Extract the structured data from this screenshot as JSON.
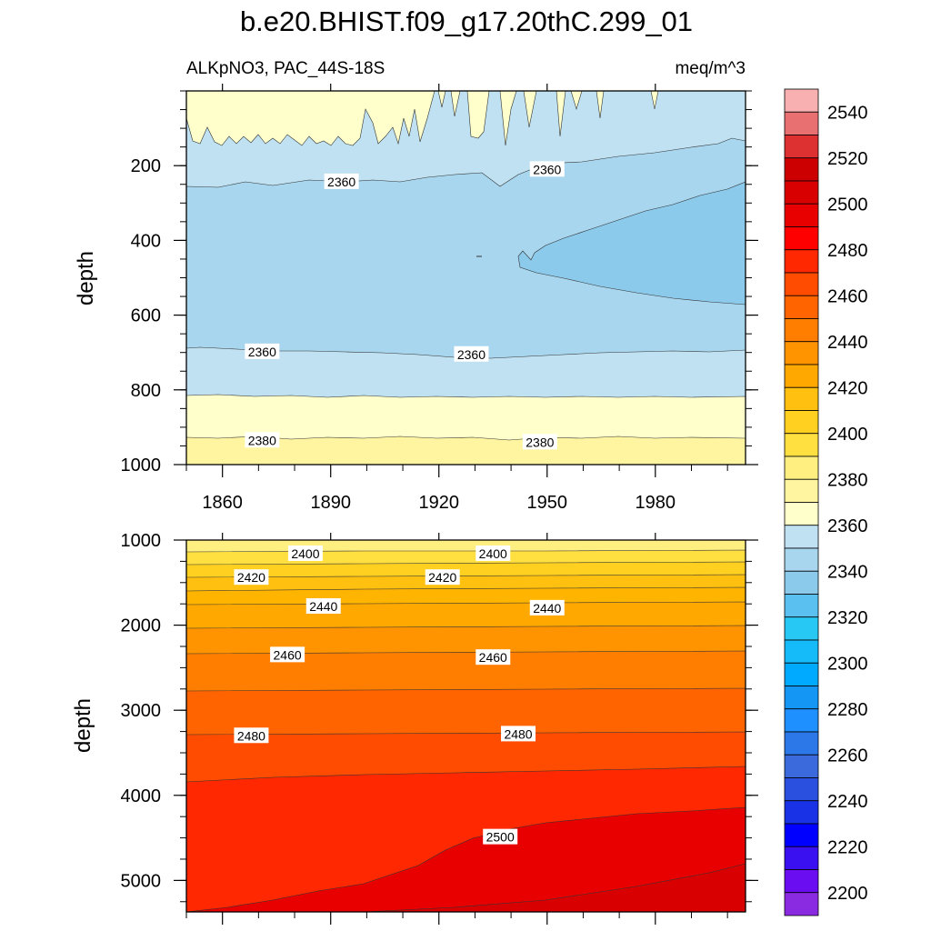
{
  "chart_data": {
    "type": "contour",
    "title": "b.e20.BHIST.f09_g17.20thC.299_01",
    "left_subtitle": "ALKpNO3, PAC_44S-18S",
    "right_subtitle": "meq/m^3",
    "colorbar": {
      "tick_labels": [
        "2200",
        "2220",
        "2240",
        "2260",
        "2280",
        "2300",
        "2320",
        "2340",
        "2360",
        "2380",
        "2400",
        "2420",
        "2440",
        "2460",
        "2480",
        "2500",
        "2520",
        "2540"
      ],
      "colors": [
        "#8a2be2",
        "#6a0df0",
        "#3a0ff0",
        "#0000ff",
        "#1a32e6",
        "#2a50e0",
        "#3a6adc",
        "#2c78e8",
        "#1e90ff",
        "#1496f5",
        "#00aaff",
        "#14bbf8",
        "#28c8f5",
        "#5ac0f0",
        "#8ccaec",
        "#a8d6ee",
        "#bfe1f2",
        "#ffffcc",
        "#fff5a0",
        "#ffef80",
        "#ffe040",
        "#ffd020",
        "#ffc010",
        "#ffa800",
        "#ff9400",
        "#ff7e00",
        "#ff6400",
        "#ff4c00",
        "#ff2800",
        "#ff0000",
        "#e80000",
        "#d80000",
        "#cc0000",
        "#dd3030",
        "#e87070",
        "#f8b0b0"
      ]
    },
    "panels": [
      {
        "ylabel": "depth",
        "xlabel": "",
        "xlim": [
          1850,
          2005
        ],
        "ylim": [
          1000,
          0
        ],
        "x_ticks": [
          "1860",
          "1890",
          "1920",
          "1950",
          "1980"
        ],
        "y_ticks": [
          "200",
          "400",
          "600",
          "800",
          "1000"
        ],
        "contour_labels": [
          {
            "text": "2360",
            "x": 1893,
            "y": 243
          },
          {
            "text": "2360",
            "x": 1950,
            "y": 210
          },
          {
            "text": "2360",
            "x": 1871,
            "y": 698
          },
          {
            "text": "2360",
            "x": 1929,
            "y": 705
          },
          {
            "text": "2380",
            "x": 1871,
            "y": 935
          },
          {
            "text": "2380",
            "x": 1948,
            "y": 940
          }
        ]
      },
      {
        "ylabel": "depth",
        "xlabel": "",
        "xlim": [
          1850,
          2005
        ],
        "ylim": [
          5370,
          1000
        ],
        "x_ticks": [],
        "y_ticks": [
          "1000",
          "2000",
          "3000",
          "4000",
          "5000"
        ],
        "contour_labels": [
          {
            "text": "2400",
            "x": 1883,
            "y": 1160
          },
          {
            "text": "2400",
            "x": 1935,
            "y": 1160
          },
          {
            "text": "2420",
            "x": 1868,
            "y": 1440
          },
          {
            "text": "2420",
            "x": 1921,
            "y": 1440
          },
          {
            "text": "2440",
            "x": 1888,
            "y": 1780
          },
          {
            "text": "2440",
            "x": 1950,
            "y": 1800
          },
          {
            "text": "2460",
            "x": 1878,
            "y": 2350
          },
          {
            "text": "2460",
            "x": 1935,
            "y": 2380
          },
          {
            "text": "2480",
            "x": 1868,
            "y": 3300
          },
          {
            "text": "2480",
            "x": 1942,
            "y": 3280
          },
          {
            "text": "2500",
            "x": 1937,
            "y": 4490
          }
        ]
      }
    ]
  }
}
